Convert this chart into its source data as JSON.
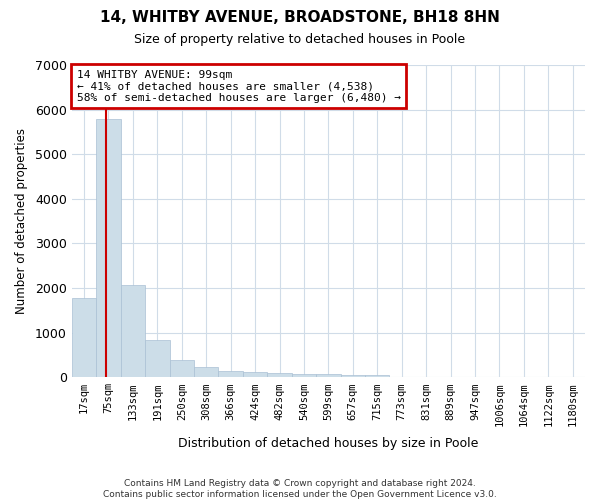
{
  "title": "14, WHITBY AVENUE, BROADSTONE, BH18 8HN",
  "subtitle": "Size of property relative to detached houses in Poole",
  "xlabel": "Distribution of detached houses by size in Poole",
  "ylabel": "Number of detached properties",
  "categories": [
    "17sqm",
    "75sqm",
    "133sqm",
    "191sqm",
    "250sqm",
    "308sqm",
    "366sqm",
    "424sqm",
    "482sqm",
    "540sqm",
    "599sqm",
    "657sqm",
    "715sqm",
    "773sqm",
    "831sqm",
    "889sqm",
    "947sqm",
    "1006sqm",
    "1064sqm",
    "1122sqm",
    "1180sqm"
  ],
  "values": [
    1780,
    5800,
    2060,
    840,
    390,
    230,
    145,
    120,
    90,
    70,
    70,
    55,
    50,
    0,
    0,
    0,
    0,
    0,
    0,
    0,
    0
  ],
  "bar_color": "#ccdde8",
  "bar_edge_color": "#aac0d4",
  "annotation_line1": "14 WHITBY AVENUE: 99sqm",
  "annotation_line2": "← 41% of detached houses are smaller (4,538)",
  "annotation_line3": "58% of semi-detached houses are larger (6,480) →",
  "annotation_box_color": "#ffffff",
  "annotation_box_edge": "#cc0000",
  "vline_color": "#cc0000",
  "ylim": [
    0,
    7000
  ],
  "yticks": [
    0,
    1000,
    2000,
    3000,
    4000,
    5000,
    6000,
    7000
  ],
  "footnote1": "Contains HM Land Registry data © Crown copyright and database right 2024.",
  "footnote2": "Contains public sector information licensed under the Open Government Licence v3.0.",
  "bg_color": "#ffffff",
  "plot_bg_color": "#ffffff",
  "grid_color": "#d0dce8"
}
